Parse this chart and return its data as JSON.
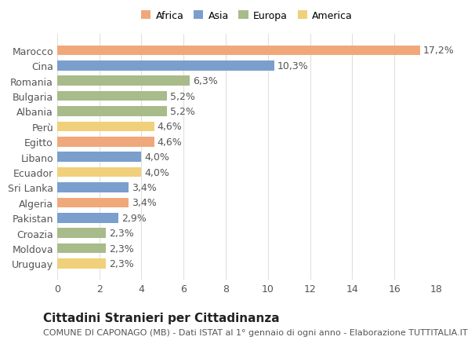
{
  "categories": [
    "Uruguay",
    "Moldova",
    "Croazia",
    "Pakistan",
    "Algeria",
    "Sri Lanka",
    "Ecuador",
    "Libano",
    "Egitto",
    "Perù",
    "Albania",
    "Bulgaria",
    "Romania",
    "Cina",
    "Marocco"
  ],
  "values": [
    2.3,
    2.3,
    2.3,
    2.9,
    3.4,
    3.4,
    4.0,
    4.0,
    4.6,
    4.6,
    5.2,
    5.2,
    6.3,
    10.3,
    17.2
  ],
  "labels": [
    "2,3%",
    "2,3%",
    "2,3%",
    "2,9%",
    "3,4%",
    "3,4%",
    "4,0%",
    "4,0%",
    "4,6%",
    "4,6%",
    "5,2%",
    "5,2%",
    "6,3%",
    "10,3%",
    "17,2%"
  ],
  "continent": [
    "America",
    "Europa",
    "Europa",
    "Asia",
    "Africa",
    "Asia",
    "America",
    "Asia",
    "Africa",
    "America",
    "Europa",
    "Europa",
    "Europa",
    "Asia",
    "Africa"
  ],
  "colors": {
    "Africa": "#F0A87A",
    "Asia": "#7B9FCC",
    "Europa": "#A8BB8A",
    "America": "#F0D07A"
  },
  "legend_order": [
    "Africa",
    "Asia",
    "Europa",
    "America"
  ],
  "xlim": [
    0,
    18
  ],
  "xticks": [
    0,
    2,
    4,
    6,
    8,
    10,
    12,
    14,
    16,
    18
  ],
  "title": "Cittadini Stranieri per Cittadinanza",
  "subtitle": "COMUNE DI CAPONAGO (MB) - Dati ISTAT al 1° gennaio di ogni anno - Elaborazione TUTTITALIA.IT",
  "bg_color": "#FFFFFF",
  "grid_color": "#E0E0E0",
  "bar_height": 0.65,
  "label_fontsize": 9,
  "tick_fontsize": 9,
  "title_fontsize": 11,
  "subtitle_fontsize": 8
}
